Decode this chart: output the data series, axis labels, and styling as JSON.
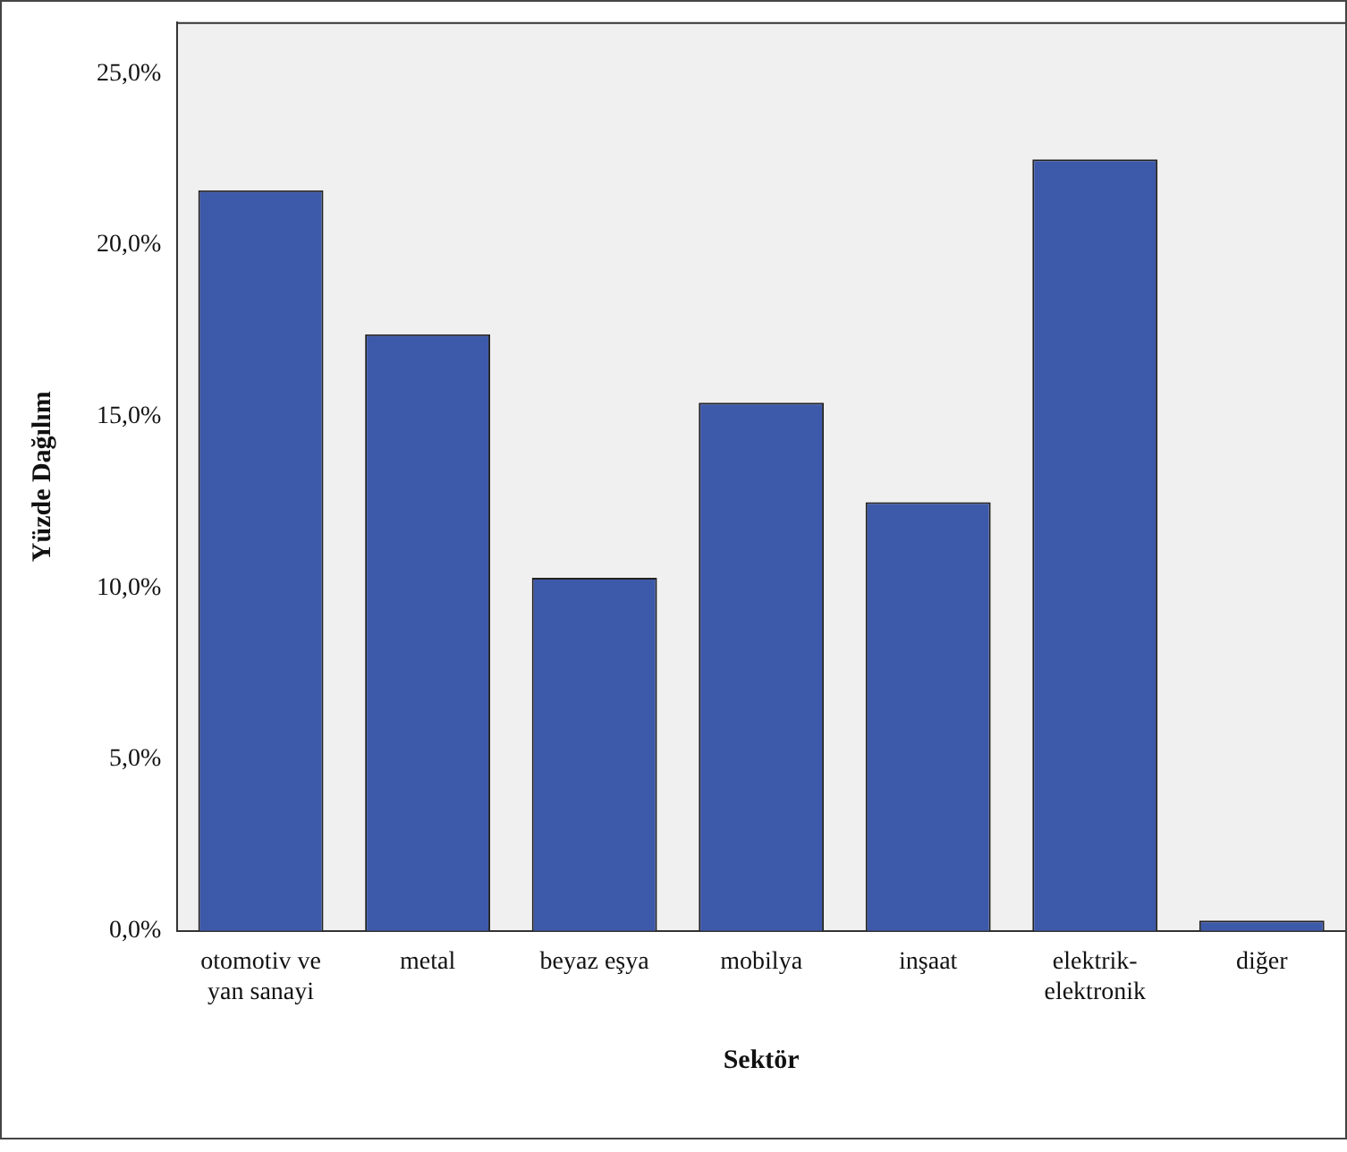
{
  "chart_data": {
    "type": "bar",
    "xlabel": "Sektör",
    "ylabel": "Yüzde Dağılım",
    "categories": [
      "otomotiv ve yan sanayi",
      "metal",
      "beyaz eşya",
      "mobilya",
      "inşaat",
      "elektrik-elektronik",
      "diğer"
    ],
    "values": [
      21.6,
      17.4,
      10.3,
      15.4,
      12.5,
      22.5,
      0.3
    ],
    "color": "#3d59aa",
    "ylim": [
      0,
      26.5
    ],
    "yticks": [
      {
        "value": 0,
        "label": "0,0%"
      },
      {
        "value": 5,
        "label": "5,0%"
      },
      {
        "value": 10,
        "label": "10,0%"
      },
      {
        "value": 15,
        "label": "15,0%"
      },
      {
        "value": 20,
        "label": "20,0%"
      },
      {
        "value": 25,
        "label": "25,0%"
      }
    ],
    "grid": false,
    "legend": false
  }
}
